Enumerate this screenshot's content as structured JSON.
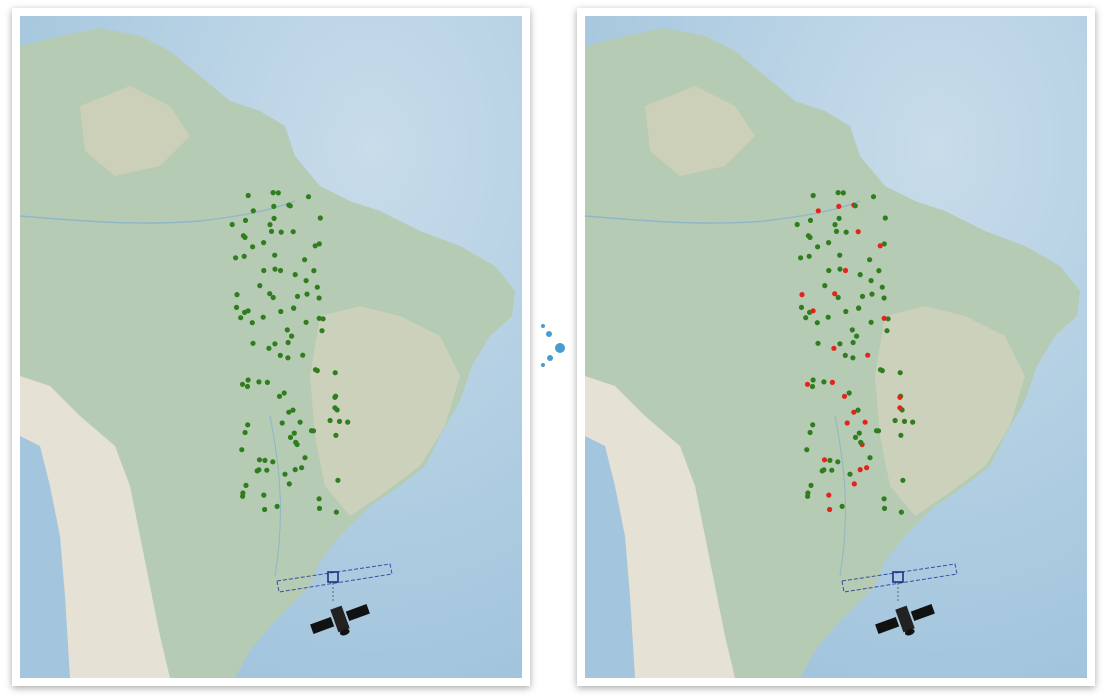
{
  "colors": {
    "ocean": "#a9c9de",
    "ocean_light": "#c9dde9",
    "land": "#b6ccb4",
    "land_highland": "#d7d4bf",
    "andes": "#e6e2d6",
    "point_normal": "#2f7d1f",
    "point_flagged": "#e3231c",
    "arrow_dots": "#4a9bd0"
  },
  "icons": {
    "satellite": "satellite-icon",
    "transition": "ellipsis-arrow-icon"
  },
  "panels": [
    {
      "name": "map-panel-before",
      "state": "all points normal"
    },
    {
      "name": "map-panel-after",
      "state": "some points flagged"
    }
  ]
}
